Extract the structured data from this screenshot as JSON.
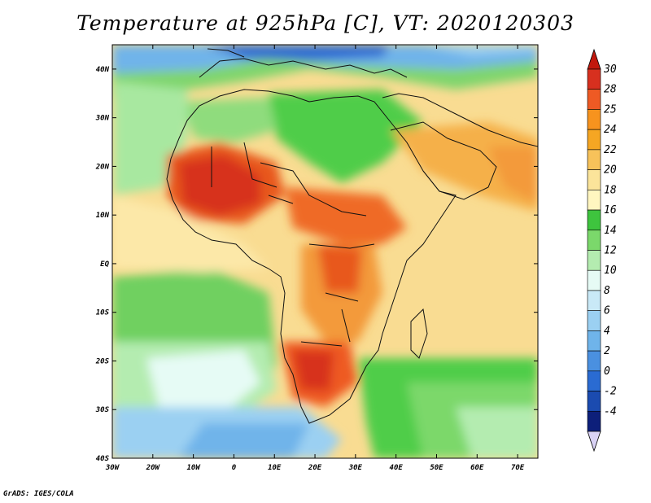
{
  "title": "Temperature at 925hPa [C], VT: 2020120303",
  "credit": "GrADS: IGES/COLA",
  "map": {
    "lon_labels": [
      "30W",
      "20W",
      "10W",
      "0",
      "10E",
      "20E",
      "30E",
      "40E",
      "50E",
      "60E",
      "70E"
    ],
    "lat_labels": [
      "40N",
      "30N",
      "20N",
      "10N",
      "EQ",
      "10S",
      "20S",
      "30S",
      "40S"
    ],
    "lon_range": [
      -30,
      75
    ],
    "lat_range": [
      -40,
      45
    ]
  },
  "colorbar": {
    "labels": [
      "30",
      "28",
      "25",
      "24",
      "22",
      "20",
      "18",
      "16",
      "14",
      "12",
      "10",
      "8",
      "6",
      "4",
      "2",
      "0",
      "-2",
      "-4"
    ],
    "colors": [
      "#d7301f",
      "#ee5a24",
      "#f7931e",
      "#f5a623",
      "#f7c25a",
      "#fbe49a",
      "#fff6c0",
      "#3ec43e",
      "#7bd86b",
      "#b4ecb0",
      "#e6fbf5",
      "#c9e9f7",
      "#9bd0f2",
      "#6fb4ea",
      "#4a90e0",
      "#2a6bd2",
      "#1b4bb0",
      "#0d1f7a"
    ],
    "over_color": "#c1180d",
    "under_color": "#d9d2f5"
  }
}
